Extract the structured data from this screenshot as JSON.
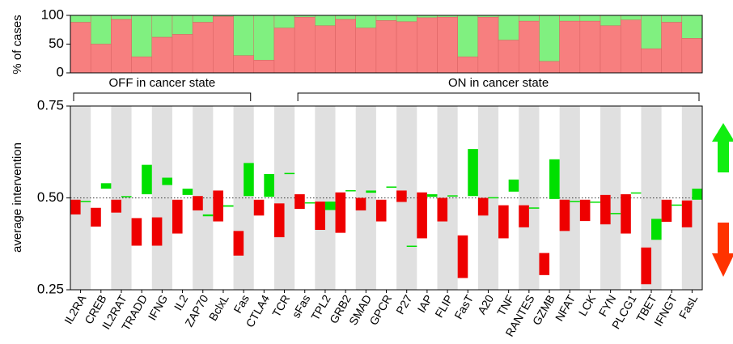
{
  "chart_data": [
    {
      "type": "stacked_bar",
      "ylabel": "% of cases",
      "ylim": [
        0,
        100
      ],
      "yticks": [
        0,
        50,
        100
      ],
      "series": [
        {
          "color": "#f77f7f",
          "values": [
            88,
            50,
            93,
            28,
            62,
            67,
            88,
            98,
            30,
            22,
            78,
            97,
            82,
            93,
            78,
            91,
            89,
            96,
            97,
            28,
            97,
            57,
            90,
            20,
            90,
            90,
            82,
            92,
            42,
            88,
            60
          ]
        },
        {
          "color": "#80f080",
          "values": [
            12,
            50,
            7,
            72,
            38,
            33,
            12,
            2,
            70,
            78,
            22,
            3,
            18,
            7,
            22,
            9,
            11,
            4,
            3,
            72,
            3,
            43,
            10,
            80,
            10,
            10,
            18,
            8,
            58,
            12,
            40
          ]
        }
      ],
      "groups": [
        {
          "label": "OFF in cancer state",
          "from": "IL2RA",
          "to": "Fas"
        },
        {
          "label": "ON in cancer state",
          "from": "sFas",
          "to": "FasL"
        }
      ]
    },
    {
      "type": "floating_bar",
      "ylabel": "average intervention",
      "ylim": [
        0.25,
        0.75
      ],
      "yticks": [
        0.25,
        {
          "value": 0.5,
          "label": "0.50"
        },
        0.75
      ],
      "reference_line": 0.5,
      "categories": [
        "IL2RA",
        "CREB",
        "IL2RAT",
        "TRADD",
        "IFNG",
        "IL2",
        "ZAP70",
        "BclxL",
        "Fas",
        "CTLA4",
        "TCR",
        "sFas",
        "TPL2",
        "GRB2",
        "SMAD",
        "GPCR",
        "P27",
        "IAP",
        "FLIP",
        "FasT",
        "A20",
        "TNF",
        "RANTES",
        "GZMB",
        "NFAT",
        "LCK",
        "FYN",
        "PLCG1",
        "TBET",
        "IFNGT",
        "FasL"
      ],
      "series": [
        {
          "color": "#ee0000",
          "values": [
            [
              0.455,
              0.495
            ],
            [
              0.422,
              0.473
            ],
            [
              0.46,
              0.495
            ],
            [
              0.37,
              0.445
            ],
            [
              0.37,
              0.447
            ],
            [
              0.403,
              0.495
            ],
            [
              0.466,
              0.505
            ],
            [
              0.436,
              0.52
            ],
            [
              0.343,
              0.41
            ],
            [
              0.452,
              0.495
            ],
            [
              0.393,
              0.485
            ],
            [
              0.47,
              0.51
            ],
            [
              0.413,
              0.49
            ],
            [
              0.405,
              0.515
            ],
            [
              0.466,
              0.5
            ],
            [
              0.436,
              0.495
            ],
            [
              0.489,
              0.52
            ],
            [
              0.39,
              0.515
            ],
            [
              0.436,
              0.5
            ],
            [
              0.282,
              0.398
            ],
            [
              0.452,
              0.5
            ],
            [
              0.39,
              0.48
            ],
            [
              0.42,
              0.48
            ],
            [
              0.29,
              0.35
            ],
            [
              0.41,
              0.495
            ],
            [
              0.437,
              0.495
            ],
            [
              0.428,
              0.508
            ],
            [
              0.403,
              0.51
            ],
            [
              0.265,
              0.365
            ],
            [
              0.435,
              0.495
            ],
            [
              0.42,
              0.493
            ]
          ]
        },
        {
          "color": "#00e000",
          "values": [
            [
              0.49,
              0.492
            ],
            [
              0.525,
              0.54
            ],
            [
              0.502,
              0.505
            ],
            [
              0.51,
              0.59
            ],
            [
              0.535,
              0.555
            ],
            [
              0.508,
              0.525
            ],
            [
              0.45,
              0.455
            ],
            [
              0.476,
              0.48
            ],
            [
              0.505,
              0.595
            ],
            [
              0.503,
              0.565
            ],
            [
              0.565,
              0.568
            ],
            [
              0.486,
              0.488
            ],
            [
              0.467,
              0.49
            ],
            [
              0.519,
              0.521
            ],
            [
              0.514,
              0.52
            ],
            [
              0.529,
              0.531
            ],
            [
              0.368,
              0.37
            ],
            [
              0.503,
              0.51
            ],
            [
              0.505,
              0.507
            ],
            [
              0.505,
              0.633
            ],
            [
              0.5,
              0.502
            ],
            [
              0.517,
              0.55
            ],
            [
              0.472,
              0.474
            ],
            [
              0.497,
              0.605
            ],
            [
              0.49,
              0.492
            ],
            [
              0.488,
              0.49
            ],
            [
              0.457,
              0.459
            ],
            [
              0.513,
              0.515
            ],
            [
              0.386,
              0.443
            ],
            [
              0.48,
              0.482
            ],
            [
              0.495,
              0.525
            ]
          ]
        }
      ]
    }
  ]
}
